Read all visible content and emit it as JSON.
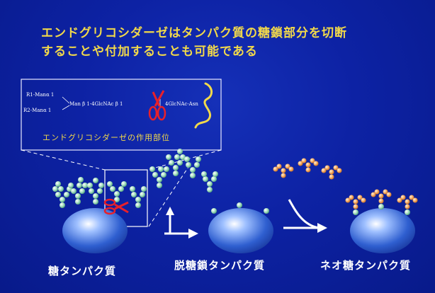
{
  "title": {
    "line1": "エンドグリコシダーゼはタンパク質の糖鎖部分を切断",
    "line2": "することや付加することも可能である"
  },
  "inset": {
    "r1": "R1-Manα 1",
    "r2": "R2-Manα 1",
    "core": "Man β 1-4GlcNAc β 1",
    "tail": "4GlcNAc-Asn",
    "caption": "エンドグリコシダーゼの作用部位"
  },
  "labels": {
    "glycoprotein": "糖タンパク質",
    "deglycosylated": "脱糖鎖タンパク質",
    "neo": "ネオ糖タンパク質"
  },
  "colors": {
    "title": "#f2d94a",
    "glycan_green": "#a8e0c0",
    "glycan_orange": "#f0a050",
    "scissors": "#e8202a",
    "protein": "#3a6ad8"
  },
  "icons": [
    "scissors-icon",
    "arrow-right-icon",
    "arrow-curved-icon"
  ]
}
